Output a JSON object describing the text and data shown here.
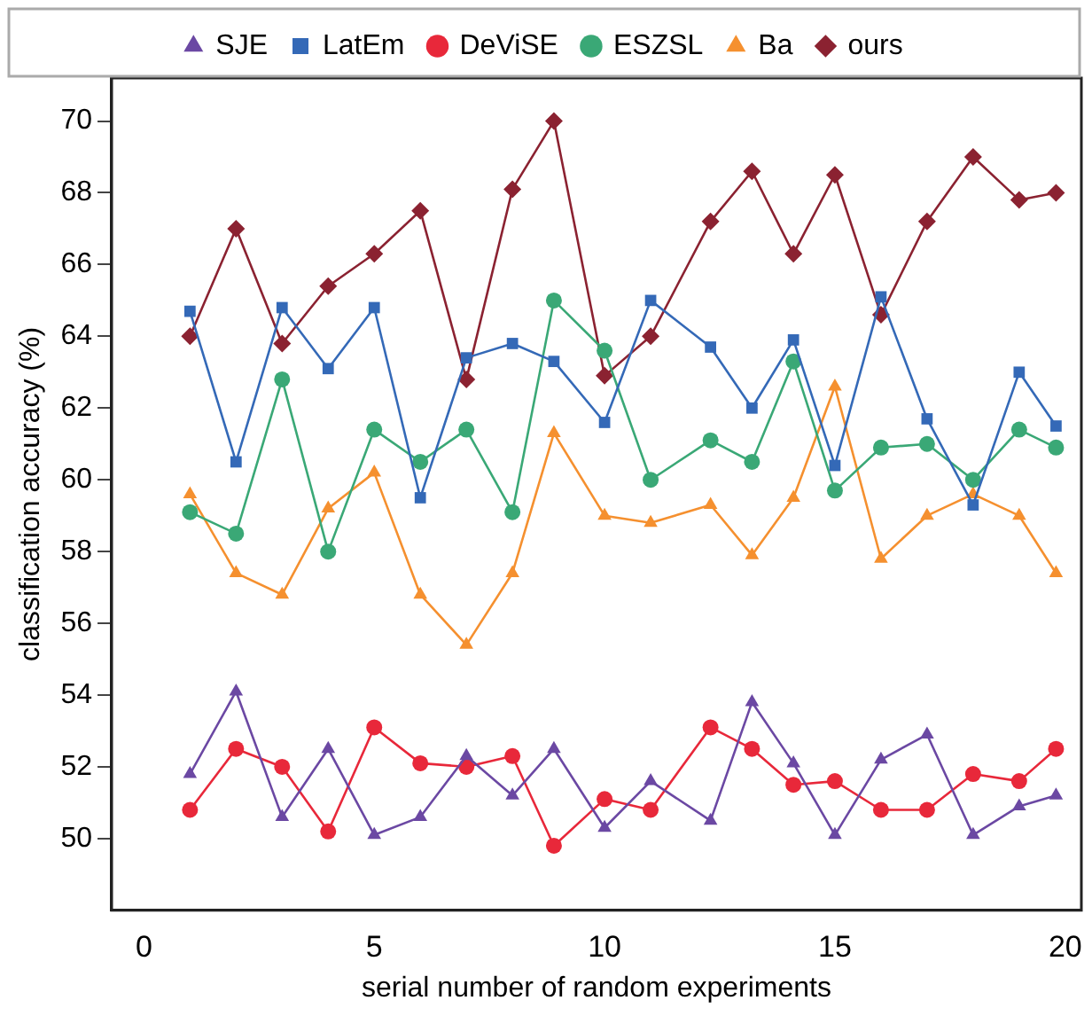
{
  "chart_data": {
    "type": "line",
    "xlabel": "serial number of random experiments",
    "ylabel": "classification accuracy (%)",
    "x": [
      1,
      2,
      3,
      4,
      5,
      6,
      7,
      8,
      8.9,
      10,
      11,
      12.3,
      13.2,
      14.1,
      15,
      16,
      17,
      18,
      19,
      19.8
    ],
    "series": [
      {
        "name": "SJE",
        "color": "#6b48a3",
        "marker": "triangle",
        "values": [
          51.8,
          54.1,
          50.6,
          52.5,
          50.1,
          50.6,
          52.3,
          51.2,
          52.5,
          50.3,
          51.6,
          50.5,
          53.8,
          52.1,
          50.1,
          52.2,
          52.9,
          50.1,
          50.9,
          51.2
        ]
      },
      {
        "name": "LatEm",
        "color": "#3469b7",
        "marker": "square",
        "values": [
          64.7,
          60.5,
          64.8,
          63.1,
          64.8,
          59.5,
          63.4,
          63.8,
          63.3,
          61.6,
          65.0,
          63.7,
          62.0,
          63.9,
          60.4,
          65.1,
          61.7,
          59.3,
          63.0,
          61.5
        ]
      },
      {
        "name": "DeViSE",
        "color": "#e8283a",
        "marker": "circle",
        "values": [
          50.8,
          52.5,
          52.0,
          50.2,
          53.1,
          52.1,
          52.0,
          52.3,
          49.8,
          51.1,
          50.8,
          53.1,
          52.5,
          51.5,
          51.6,
          50.8,
          50.8,
          51.8,
          51.6,
          52.5
        ]
      },
      {
        "name": "ESZSL",
        "color": "#3aa876",
        "marker": "circle",
        "values": [
          59.1,
          58.5,
          62.8,
          58.0,
          61.4,
          60.5,
          61.4,
          59.1,
          65.0,
          63.6,
          60.0,
          61.1,
          60.5,
          63.3,
          59.7,
          60.9,
          61.0,
          60.0,
          61.4,
          60.9
        ]
      },
      {
        "name": "Ba",
        "color": "#f5902f",
        "marker": "triangle",
        "values": [
          59.6,
          57.4,
          56.8,
          59.2,
          60.2,
          56.8,
          55.4,
          57.4,
          61.3,
          59.0,
          58.8,
          59.3,
          57.9,
          59.5,
          62.6,
          57.8,
          59.0,
          59.6,
          59.0,
          57.4
        ]
      },
      {
        "name": "ours",
        "color": "#8b2231",
        "marker": "diamond",
        "values": [
          64.0,
          67.0,
          63.8,
          65.4,
          66.3,
          67.5,
          62.8,
          68.1,
          70.0,
          62.9,
          64.0,
          67.2,
          68.6,
          66.3,
          68.5,
          64.6,
          67.2,
          69.0,
          67.8,
          68.0
        ]
      }
    ],
    "xlim": [
      -0.7,
      20.35
    ],
    "xticks": [
      0,
      5,
      10,
      15,
      20
    ],
    "ylim": [
      48,
      71.2
    ],
    "yticks": [
      50,
      52,
      54,
      56,
      58,
      60,
      62,
      64,
      66,
      68,
      70
    ],
    "grid": false,
    "legend": "top",
    "line_style": "solid"
  }
}
